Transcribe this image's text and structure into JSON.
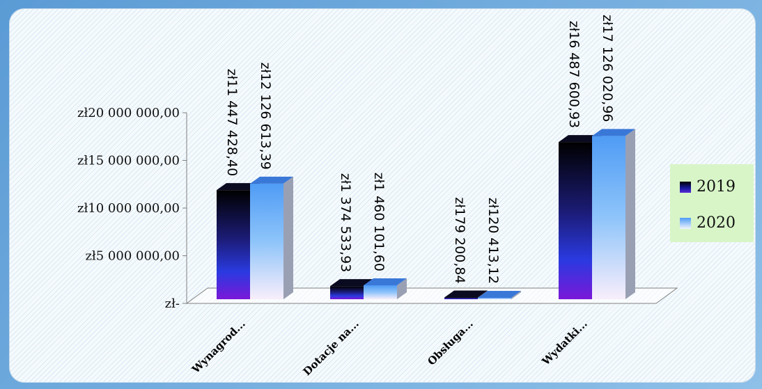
{
  "chart_data": {
    "type": "bar",
    "categories": [
      "Wynagrod...",
      "Dotacje na...",
      "Obsługa...",
      "Wydatki..."
    ],
    "series": [
      {
        "name": "2019",
        "values": [
          11447428.4,
          1374533.93,
          179200.84,
          16487600.93
        ],
        "labels": [
          "zł11 447 428,40",
          "zł1 374 533,93",
          "zł179 200,84",
          "zł16 487 600,93"
        ]
      },
      {
        "name": "2020",
        "values": [
          12126613.39,
          1460101.6,
          120413.12,
          17126020.96
        ],
        "labels": [
          "zł12 126 613,39",
          "zł1 460 101,60",
          "zł120 413,12",
          "zł17 126 020,96"
        ]
      }
    ],
    "ylim": [
      0,
      20000000
    ],
    "yticks": [
      0,
      5000000,
      10000000,
      15000000,
      20000000
    ],
    "ytick_labels": [
      "zł-",
      "zł5 000 000,00",
      "zł10 000 000,00",
      "zł15 000 000,00",
      "zł20 000 000,00"
    ],
    "legend_position": "right",
    "colors": {
      "2019": "#1a1aa0",
      "2020": "#6fb0f5",
      "legend_bg": "#d8f5c8"
    }
  }
}
